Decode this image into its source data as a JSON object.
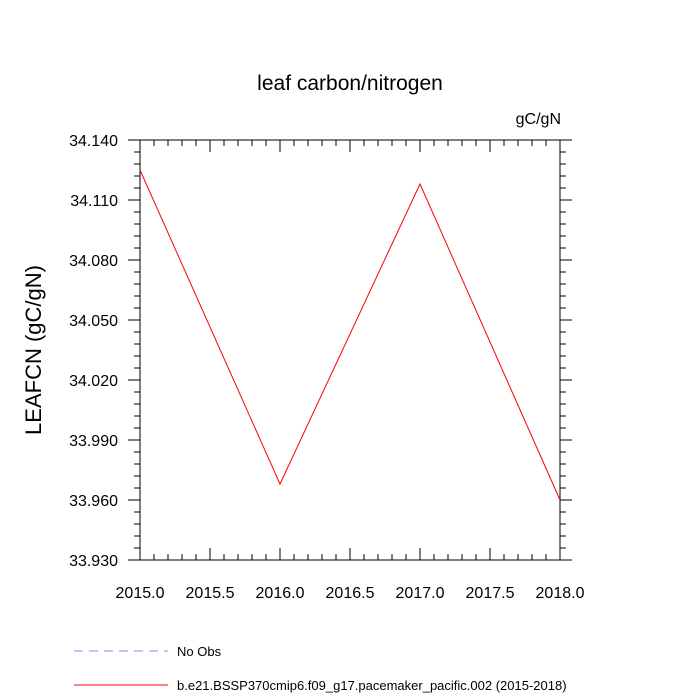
{
  "chart_data": {
    "type": "line",
    "title": "leaf carbon/nitrogen",
    "units": "gC/gN",
    "xlabel": "",
    "ylabel": "LEAFCN  (gC/gN)",
    "xlim": [
      2015.0,
      2018.0
    ],
    "ylim": [
      33.93,
      34.14
    ],
    "x_ticks": [
      "2015.0",
      "2015.5",
      "2016.0",
      "2016.5",
      "2017.0",
      "2017.5",
      "2018.0"
    ],
    "x_tick_values": [
      2015.0,
      2015.5,
      2016.0,
      2016.5,
      2017.0,
      2017.5,
      2018.0
    ],
    "y_ticks": [
      "33.930",
      "33.960",
      "33.990",
      "34.020",
      "34.050",
      "34.080",
      "34.110",
      "34.140"
    ],
    "y_tick_values": [
      33.93,
      33.96,
      33.99,
      34.02,
      34.05,
      34.08,
      34.11,
      34.14
    ],
    "grid": false,
    "series": [
      {
        "name": "b.e21.BSSP370cmip6.f09_g17.pacemaker_pacific.002 (2015-2018)",
        "color": "#ff0000",
        "dash": "solid",
        "x": [
          2015.0,
          2016.0,
          2017.0,
          2018.0
        ],
        "y": [
          34.125,
          33.968,
          34.118,
          33.96
        ]
      }
    ],
    "legend": [
      {
        "label": "No Obs",
        "color": "#8a8aff",
        "dash": "dashed"
      },
      {
        "label": "b.e21.BSSP370cmip6.f09_g17.pacemaker_pacific.002 (2015-2018)",
        "color": "#ff0000",
        "dash": "solid"
      }
    ],
    "legend_position": "bottom-left"
  }
}
